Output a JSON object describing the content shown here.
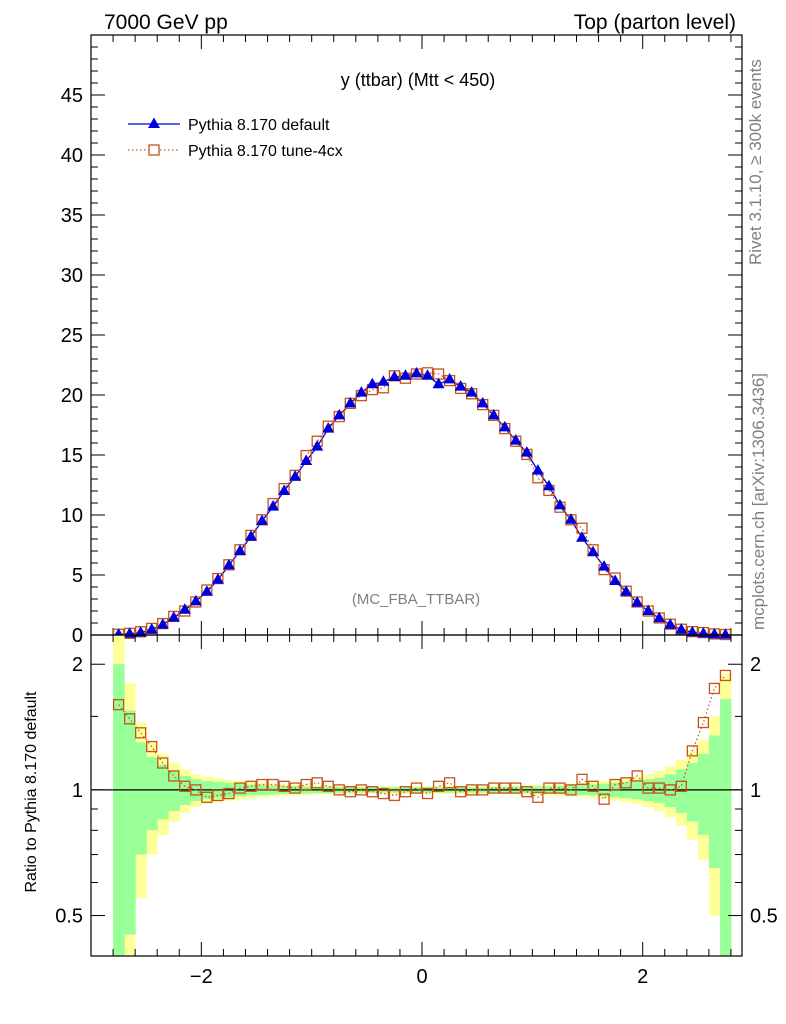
{
  "header": {
    "left": "7000 GeV pp",
    "right": "Top (parton level)"
  },
  "side_labels": {
    "rivet": "Rivet 3.1.10, ≥ 300k events",
    "mcplots": "mcplots.cern.ch [arXiv:1306.3436]"
  },
  "plot_title": "y (ttbar) (Mtt < 450)",
  "watermark": "(MC_FBA_TTBAR)",
  "legend": [
    {
      "label": "Pythia 8.170 default",
      "color": "#0000dd",
      "marker": "triangle"
    },
    {
      "label": "Pythia 8.170 tune-4cx",
      "color": "#c4541c",
      "marker": "open-square"
    }
  ],
  "ratio_ylabel": "Ratio to Pythia 8.170 default",
  "chart_data": [
    {
      "type": "line",
      "panel": "main",
      "title": "y (ttbar) (Mtt < 450)",
      "xlim": [
        -3.0,
        2.9
      ],
      "ylim": [
        0,
        50
      ],
      "y_ticks": [
        0,
        5,
        10,
        15,
        20,
        25,
        30,
        35,
        40,
        45
      ],
      "y_tick_labels": [
        "0",
        "5",
        "10",
        "15",
        "20",
        "25",
        "30",
        "35",
        "40",
        "45"
      ],
      "x_ticks": [
        -2,
        0,
        2
      ],
      "x": [
        -2.75,
        -2.65,
        -2.55,
        -2.45,
        -2.35,
        -2.25,
        -2.15,
        -2.05,
        -1.95,
        -1.85,
        -1.75,
        -1.65,
        -1.55,
        -1.45,
        -1.35,
        -1.25,
        -1.15,
        -1.05,
        -0.95,
        -0.85,
        -0.75,
        -0.65,
        -0.55,
        -0.45,
        -0.35,
        -0.25,
        -0.15,
        -0.05,
        0.05,
        0.15,
        0.25,
        0.35,
        0.45,
        0.55,
        0.65,
        0.75,
        0.85,
        0.95,
        1.05,
        1.15,
        1.25,
        1.35,
        1.45,
        1.55,
        1.65,
        1.75,
        1.85,
        1.95,
        2.05,
        2.15,
        2.25,
        2.35,
        2.45,
        2.55,
        2.65,
        2.75
      ],
      "series": [
        {
          "name": "Pythia 8.170 default",
          "color": "#0000dd",
          "values": [
            0.04,
            0.1,
            0.2,
            0.45,
            0.85,
            1.45,
            2.1,
            2.8,
            3.6,
            4.6,
            5.8,
            7.0,
            8.2,
            9.5,
            10.7,
            12.0,
            13.2,
            14.5,
            15.7,
            17.2,
            18.3,
            19.3,
            20.2,
            20.9,
            21.1,
            21.5,
            21.6,
            21.8,
            21.6,
            20.9,
            21.3,
            20.7,
            20.2,
            19.3,
            18.3,
            17.3,
            16.2,
            15.2,
            13.7,
            12.4,
            10.8,
            9.6,
            8.1,
            6.9,
            5.7,
            4.5,
            3.6,
            2.7,
            2.0,
            1.4,
            0.85,
            0.45,
            0.22,
            0.12,
            0.05,
            0.02
          ]
        },
        {
          "name": "Pythia 8.170 tune-4cx",
          "color": "#c4541c",
          "values": [
            0.06,
            0.14,
            0.27,
            0.55,
            0.95,
            1.55,
            2.0,
            2.75,
            3.75,
            4.7,
            5.85,
            7.1,
            8.3,
            9.6,
            10.95,
            12.2,
            13.3,
            14.95,
            16.15,
            17.4,
            18.2,
            19.3,
            19.95,
            20.45,
            20.6,
            21.6,
            21.4,
            21.75,
            21.85,
            21.75,
            21.2,
            20.55,
            20.1,
            19.2,
            18.3,
            17.2,
            16.15,
            15.05,
            13.1,
            12.05,
            10.65,
            9.6,
            8.9,
            7.1,
            5.45,
            4.75,
            3.65,
            2.75,
            2.0,
            1.42,
            0.9,
            0.48,
            0.28,
            0.2,
            0.09,
            0.04
          ]
        }
      ]
    },
    {
      "type": "line",
      "panel": "ratio",
      "ylabel": "Ratio to Pythia 8.170 default",
      "ylim": [
        0.4,
        2.35
      ],
      "y_scale": "log",
      "y_ticks": [
        0.5,
        1,
        2
      ],
      "y_tick_labels": [
        "0.5",
        "1",
        "2"
      ],
      "x_ticks": [
        -2,
        0,
        2
      ],
      "x_tick_labels": [
        "−2",
        "0",
        "2"
      ],
      "x": [
        -2.75,
        -2.65,
        -2.55,
        -2.45,
        -2.35,
        -2.25,
        -2.15,
        -2.05,
        -1.95,
        -1.85,
        -1.75,
        -1.65,
        -1.55,
        -1.45,
        -1.35,
        -1.25,
        -1.15,
        -1.05,
        -0.95,
        -0.85,
        -0.75,
        -0.65,
        -0.55,
        -0.45,
        -0.35,
        -0.25,
        -0.15,
        -0.05,
        0.05,
        0.15,
        0.25,
        0.35,
        0.45,
        0.55,
        0.65,
        0.75,
        0.85,
        0.95,
        1.05,
        1.15,
        1.25,
        1.35,
        1.45,
        1.55,
        1.65,
        1.75,
        1.85,
        1.95,
        2.05,
        2.15,
        2.25,
        2.35,
        2.45,
        2.55,
        2.65,
        2.75
      ],
      "band_inner_half_width": [
        1.0,
        0.55,
        0.3,
        0.2,
        0.15,
        0.11,
        0.08,
        0.06,
        0.05,
        0.045,
        0.04,
        0.035,
        0.03,
        0.028,
        0.025,
        0.022,
        0.02,
        0.02,
        0.018,
        0.018,
        0.016,
        0.016,
        0.015,
        0.015,
        0.015,
        0.015,
        0.015,
        0.015,
        0.015,
        0.015,
        0.015,
        0.015,
        0.015,
        0.015,
        0.016,
        0.016,
        0.018,
        0.018,
        0.02,
        0.02,
        0.022,
        0.025,
        0.028,
        0.03,
        0.035,
        0.04,
        0.045,
        0.05,
        0.06,
        0.07,
        0.09,
        0.12,
        0.16,
        0.22,
        0.35,
        0.65
      ],
      "band_outer_half_width": [
        1.4,
        0.8,
        0.45,
        0.3,
        0.22,
        0.16,
        0.12,
        0.09,
        0.075,
        0.065,
        0.058,
        0.05,
        0.045,
        0.04,
        0.036,
        0.033,
        0.03,
        0.028,
        0.026,
        0.025,
        0.024,
        0.023,
        0.022,
        0.022,
        0.022,
        0.022,
        0.022,
        0.022,
        0.022,
        0.022,
        0.022,
        0.022,
        0.022,
        0.022,
        0.023,
        0.024,
        0.025,
        0.026,
        0.028,
        0.03,
        0.033,
        0.036,
        0.04,
        0.045,
        0.05,
        0.058,
        0.065,
        0.075,
        0.09,
        0.11,
        0.14,
        0.18,
        0.24,
        0.32,
        0.5,
        0.9
      ],
      "series": [
        {
          "name": "Pythia 8.170 tune-4cx",
          "color": "#c4541c",
          "values": [
            1.6,
            1.48,
            1.37,
            1.27,
            1.16,
            1.08,
            1.02,
            1.0,
            0.96,
            0.97,
            0.98,
            1.01,
            1.02,
            1.03,
            1.03,
            1.02,
            1.01,
            1.03,
            1.04,
            1.02,
            1.0,
            0.99,
            1.0,
            0.99,
            0.98,
            0.97,
            0.99,
            1.01,
            0.98,
            1.02,
            1.04,
            0.99,
            1.0,
            1.0,
            1.01,
            1.01,
            1.01,
            0.99,
            0.96,
            1.01,
            1.01,
            1.0,
            1.06,
            1.02,
            0.95,
            1.03,
            1.04,
            1.08,
            1.01,
            1.01,
            1.0,
            1.02,
            1.24,
            1.45,
            1.75,
            1.88
          ]
        }
      ]
    }
  ]
}
